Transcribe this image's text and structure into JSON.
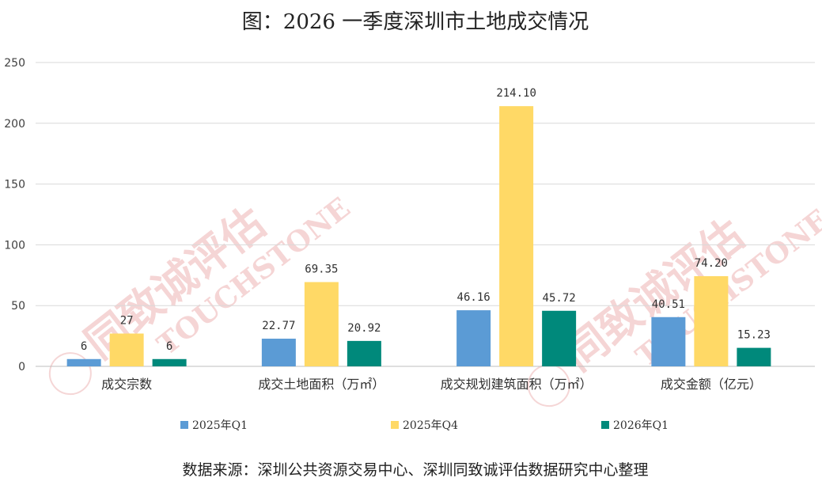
{
  "chart_data": {
    "type": "bar",
    "title": "图：2026 一季度深圳市土地成交情况",
    "categories": [
      "成交宗数",
      "成交土地面积（万㎡）",
      "成交规划建筑面积（万㎡）",
      "成交金额（亿元）"
    ],
    "series": [
      {
        "name": "2025年Q1",
        "values": [
          6,
          22.77,
          46.16,
          40.51
        ],
        "labels": [
          "6",
          "22.77",
          "46.16",
          "40.51"
        ],
        "color": "#5b9bd5"
      },
      {
        "name": "2025年Q4",
        "values": [
          27,
          69.35,
          214.1,
          74.2
        ],
        "labels": [
          "27",
          "69.35",
          "214.10",
          "74.20"
        ],
        "color": "#ffd966"
      },
      {
        "name": "2026年Q1",
        "values": [
          6,
          20.92,
          45.72,
          15.23
        ],
        "labels": [
          "6",
          "20.92",
          "45.72",
          "15.23"
        ],
        "color": "#00897b"
      }
    ],
    "ylim": [
      0,
      250
    ],
    "yticks": [
      0,
      50,
      100,
      150,
      200,
      250
    ],
    "ytick_labels": [
      "0",
      "50",
      "100",
      "150",
      "200",
      "250"
    ],
    "xlabel": "",
    "ylabel": "",
    "grid": true,
    "legend": "bottom"
  },
  "watermark": {
    "cn": "同致诚评估",
    "en": "TOUCHSTONE",
    "small": "TOUCHSTONE"
  },
  "source": "数据来源：深圳公共资源交易中心、深圳同致诚评估数据研究中心整理",
  "colors": {
    "grid": "#d9d9d9",
    "axis": "#bfbfbf",
    "watermark": "#e9a3a3"
  }
}
